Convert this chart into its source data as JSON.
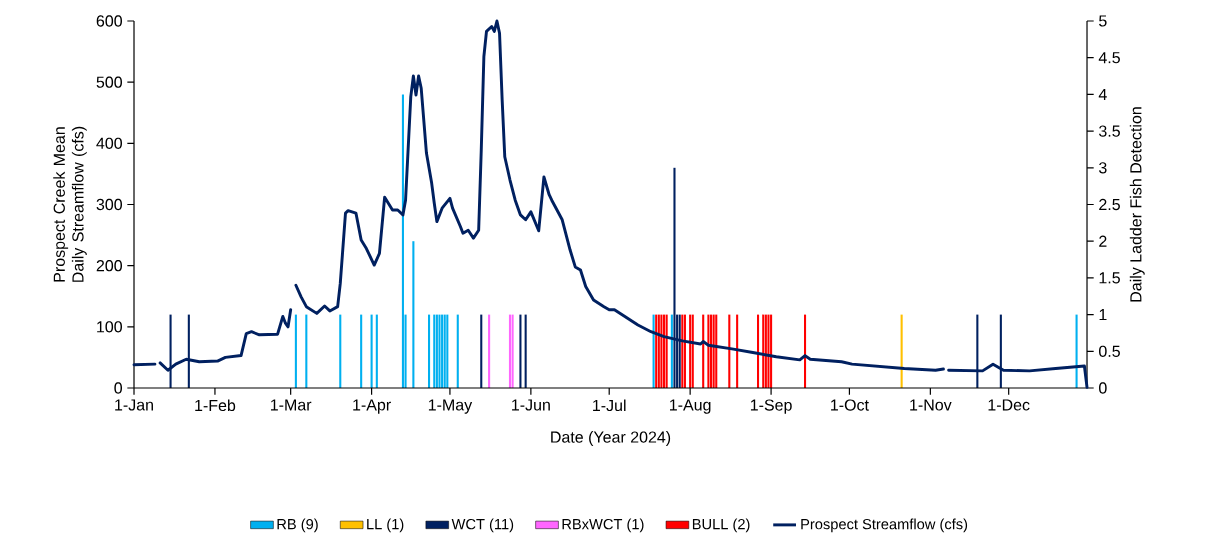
{
  "chart_data": {
    "type": "bar",
    "xlabel": "Date (Year 2024)",
    "ylabel": "Prospect Creek Mean Daily Streamflow (cfs)",
    "y2label": "Daily Ladder Fish Detection",
    "xlim": [
      "2024-01-01",
      "2024-12-31"
    ],
    "xticks": [
      {
        "value": "2024-01-01",
        "label": "1-Jan"
      },
      {
        "value": "2024-02-01",
        "label": "1-Feb"
      },
      {
        "value": "2024-03-01",
        "label": "1-Mar"
      },
      {
        "value": "2024-04-01",
        "label": "1-Apr"
      },
      {
        "value": "2024-05-01",
        "label": "1-May"
      },
      {
        "value": "2024-06-01",
        "label": "1-Jun"
      },
      {
        "value": "2024-07-01",
        "label": "1-Jul"
      },
      {
        "value": "2024-08-01",
        "label": "1-Aug"
      },
      {
        "value": "2024-09-01",
        "label": "1-Sep"
      },
      {
        "value": "2024-10-01",
        "label": "1-Oct"
      },
      {
        "value": "2024-11-01",
        "label": "1-Nov"
      },
      {
        "value": "2024-12-01",
        "label": "1-Dec"
      }
    ],
    "ylim": [
      0,
      600
    ],
    "yticks": [
      0,
      100,
      200,
      300,
      400,
      500,
      600
    ],
    "y2lim": [
      0,
      5
    ],
    "y2ticks": [
      0,
      0.5,
      1,
      1.5,
      2,
      2.5,
      3,
      3.5,
      4,
      4.5,
      5
    ],
    "legend": "bottom",
    "series": [
      {
        "name": "RB (9)",
        "axis": "y2",
        "color": "#00b0f0",
        "x": [
          "2024-03-03",
          "2024-03-07",
          "2024-03-20",
          "2024-03-28",
          "2024-04-01",
          "2024-04-03",
          "2024-04-13",
          "2024-04-14",
          "2024-04-17",
          "2024-04-23",
          "2024-04-25",
          "2024-04-26",
          "2024-04-27",
          "2024-04-28",
          "2024-04-29",
          "2024-04-30",
          "2024-05-04",
          "2024-07-18",
          "2024-07-25",
          "2024-12-27"
        ],
        "values": [
          1,
          1,
          1,
          1,
          1,
          1,
          4,
          1,
          2,
          1,
          1,
          1,
          1,
          1,
          1,
          1,
          1,
          1,
          1,
          1
        ]
      },
      {
        "name": "LL (1)",
        "axis": "y2",
        "color": "#ffc000",
        "x": [
          "2024-10-21"
        ],
        "values": [
          1
        ]
      },
      {
        "name": "WCT (11)",
        "axis": "y2",
        "color": "#002060",
        "x": [
          "2024-01-15",
          "2024-01-22",
          "2024-05-13",
          "2024-05-28",
          "2024-05-30",
          "2024-07-26",
          "2024-07-27",
          "2024-07-28",
          "2024-11-19",
          "2024-11-28"
        ],
        "values": [
          1,
          1,
          1,
          1,
          1,
          3,
          1,
          1,
          1,
          1
        ]
      },
      {
        "name": "RBxWCT (1)",
        "axis": "y2",
        "color": "#ff66ff",
        "x": [
          "2024-05-16",
          "2024-05-24",
          "2024-05-25"
        ],
        "values": [
          1,
          1,
          1
        ]
      },
      {
        "name": "BULL (2)",
        "axis": "y2",
        "color": "#ff0000",
        "x": [
          "2024-07-19",
          "2024-07-20",
          "2024-07-21",
          "2024-07-22",
          "2024-07-23",
          "2024-07-29",
          "2024-07-30",
          "2024-08-01",
          "2024-08-02",
          "2024-08-06",
          "2024-08-08",
          "2024-08-09",
          "2024-08-10",
          "2024-08-11",
          "2024-08-16",
          "2024-08-19",
          "2024-08-27",
          "2024-08-29",
          "2024-08-30",
          "2024-08-31",
          "2024-09-01",
          "2024-09-14"
        ],
        "values": [
          1,
          1,
          1,
          1,
          1,
          1,
          1,
          1,
          1,
          1,
          1,
          1,
          1,
          1,
          1,
          1,
          1,
          1,
          1,
          1,
          1,
          1
        ]
      },
      {
        "name": "Prospect Streamflow (cfs)",
        "type": "line",
        "axis": "y",
        "color": "#002060",
        "x": [
          "2024-01-01",
          "2024-01-09",
          "2024-01-10",
          "2024-01-11",
          "2024-01-14",
          "2024-01-17",
          "2024-01-21",
          "2024-01-26",
          "2024-02-02",
          "2024-02-05",
          "2024-02-11",
          "2024-02-13",
          "2024-02-15",
          "2024-02-18",
          "2024-02-25",
          "2024-02-27",
          "2024-02-28",
          "2024-02-29",
          "2024-03-01",
          "2024-03-02",
          "2024-03-03",
          "2024-03-05",
          "2024-03-07",
          "2024-03-11",
          "2024-03-14",
          "2024-03-16",
          "2024-03-19",
          "2024-03-20",
          "2024-03-22",
          "2024-03-23",
          "2024-03-26",
          "2024-03-28",
          "2024-03-30",
          "2024-04-02",
          "2024-04-04",
          "2024-04-06",
          "2024-04-09",
          "2024-04-11",
          "2024-04-13",
          "2024-04-14",
          "2024-04-16",
          "2024-04-17",
          "2024-04-18",
          "2024-04-19",
          "2024-04-20",
          "2024-04-22",
          "2024-04-24",
          "2024-04-25",
          "2024-04-26",
          "2024-04-28",
          "2024-05-01",
          "2024-05-02",
          "2024-05-05",
          "2024-05-06",
          "2024-05-08",
          "2024-05-10",
          "2024-05-12",
          "2024-05-13",
          "2024-05-14",
          "2024-05-15",
          "2024-05-17",
          "2024-05-18",
          "2024-05-19",
          "2024-05-20",
          "2024-05-21",
          "2024-05-22",
          "2024-05-24",
          "2024-05-26",
          "2024-05-28",
          "2024-05-30",
          "2024-06-01",
          "2024-06-04",
          "2024-06-06",
          "2024-06-08",
          "2024-06-09",
          "2024-06-13",
          "2024-06-16",
          "2024-06-18",
          "2024-06-20",
          "2024-06-22",
          "2024-06-25",
          "2024-06-29",
          "2024-07-01",
          "2024-07-03",
          "2024-07-07",
          "2024-07-12",
          "2024-07-17",
          "2024-07-22",
          "2024-07-29",
          "2024-08-05",
          "2024-08-06",
          "2024-08-08",
          "2024-08-17",
          "2024-08-25",
          "2024-09-03",
          "2024-09-12",
          "2024-09-14",
          "2024-09-16",
          "2024-09-28",
          "2024-10-02",
          "2024-10-22",
          "2024-11-03",
          "2024-11-06",
          "2024-11-07",
          "2024-11-08",
          "2024-11-21",
          "2024-11-25",
          "2024-11-29",
          "2024-12-09",
          "2024-12-19",
          "2024-12-30",
          "2024-12-31"
        ],
        "values": [
          38,
          39,
          null,
          41,
          29,
          39,
          47,
          43,
          44,
          50,
          53,
          89,
          92,
          87,
          88,
          117,
          106,
          100,
          128,
          null,
          168,
          149,
          133,
          122,
          134,
          126,
          133,
          171,
          286,
          290,
          286,
          242,
          228,
          201,
          220,
          312,
          291,
          291,
          283,
          307,
          476,
          510,
          479,
          510,
          490,
          384,
          335,
          302,
          272,
          294,
          310,
          294,
          264,
          253,
          258,
          245,
          258,
          389,
          542,
          583,
          591,
          583,
          600,
          580,
          471,
          378,
          340,
          307,
          283,
          275,
          288,
          257,
          345,
          316,
          307,
          275,
          226,
          198,
          193,
          166,
          144,
          133,
          128,
          128,
          117,
          103,
          92,
          84,
          77,
          72,
          76,
          70,
          64,
          58,
          51,
          46,
          53,
          47,
          43,
          39,
          32,
          29,
          31,
          null,
          29,
          28,
          39,
          29,
          28,
          32,
          36,
          1
        ]
      }
    ]
  }
}
